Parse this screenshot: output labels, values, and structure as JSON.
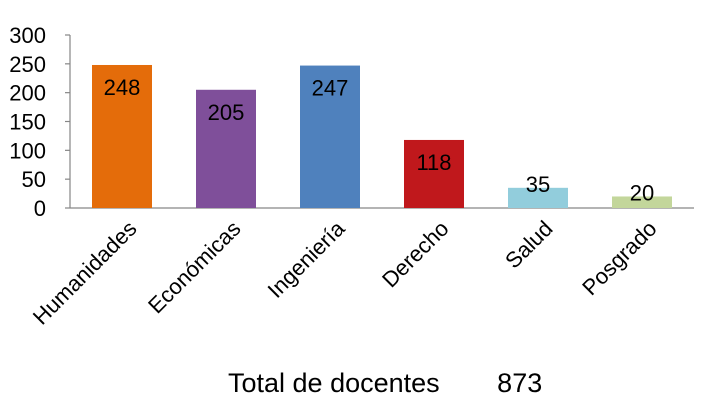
{
  "chart_data": {
    "type": "bar",
    "categories": [
      "Humanidades",
      "Económicas",
      "Ingeniería",
      "Derecho",
      "Salud",
      "Posgrado"
    ],
    "values": [
      248,
      205,
      247,
      118,
      35,
      20
    ],
    "colors": [
      "#e46c0a",
      "#7f4f9a",
      "#4f81bd",
      "#c0181c",
      "#92cddc",
      "#c3d69b"
    ],
    "ylim": [
      0,
      300
    ],
    "yticks": [
      0,
      50,
      100,
      150,
      200,
      250,
      300
    ],
    "grid": false,
    "legend": "none"
  },
  "footer": {
    "label": "Total de docentes",
    "value": "873"
  }
}
